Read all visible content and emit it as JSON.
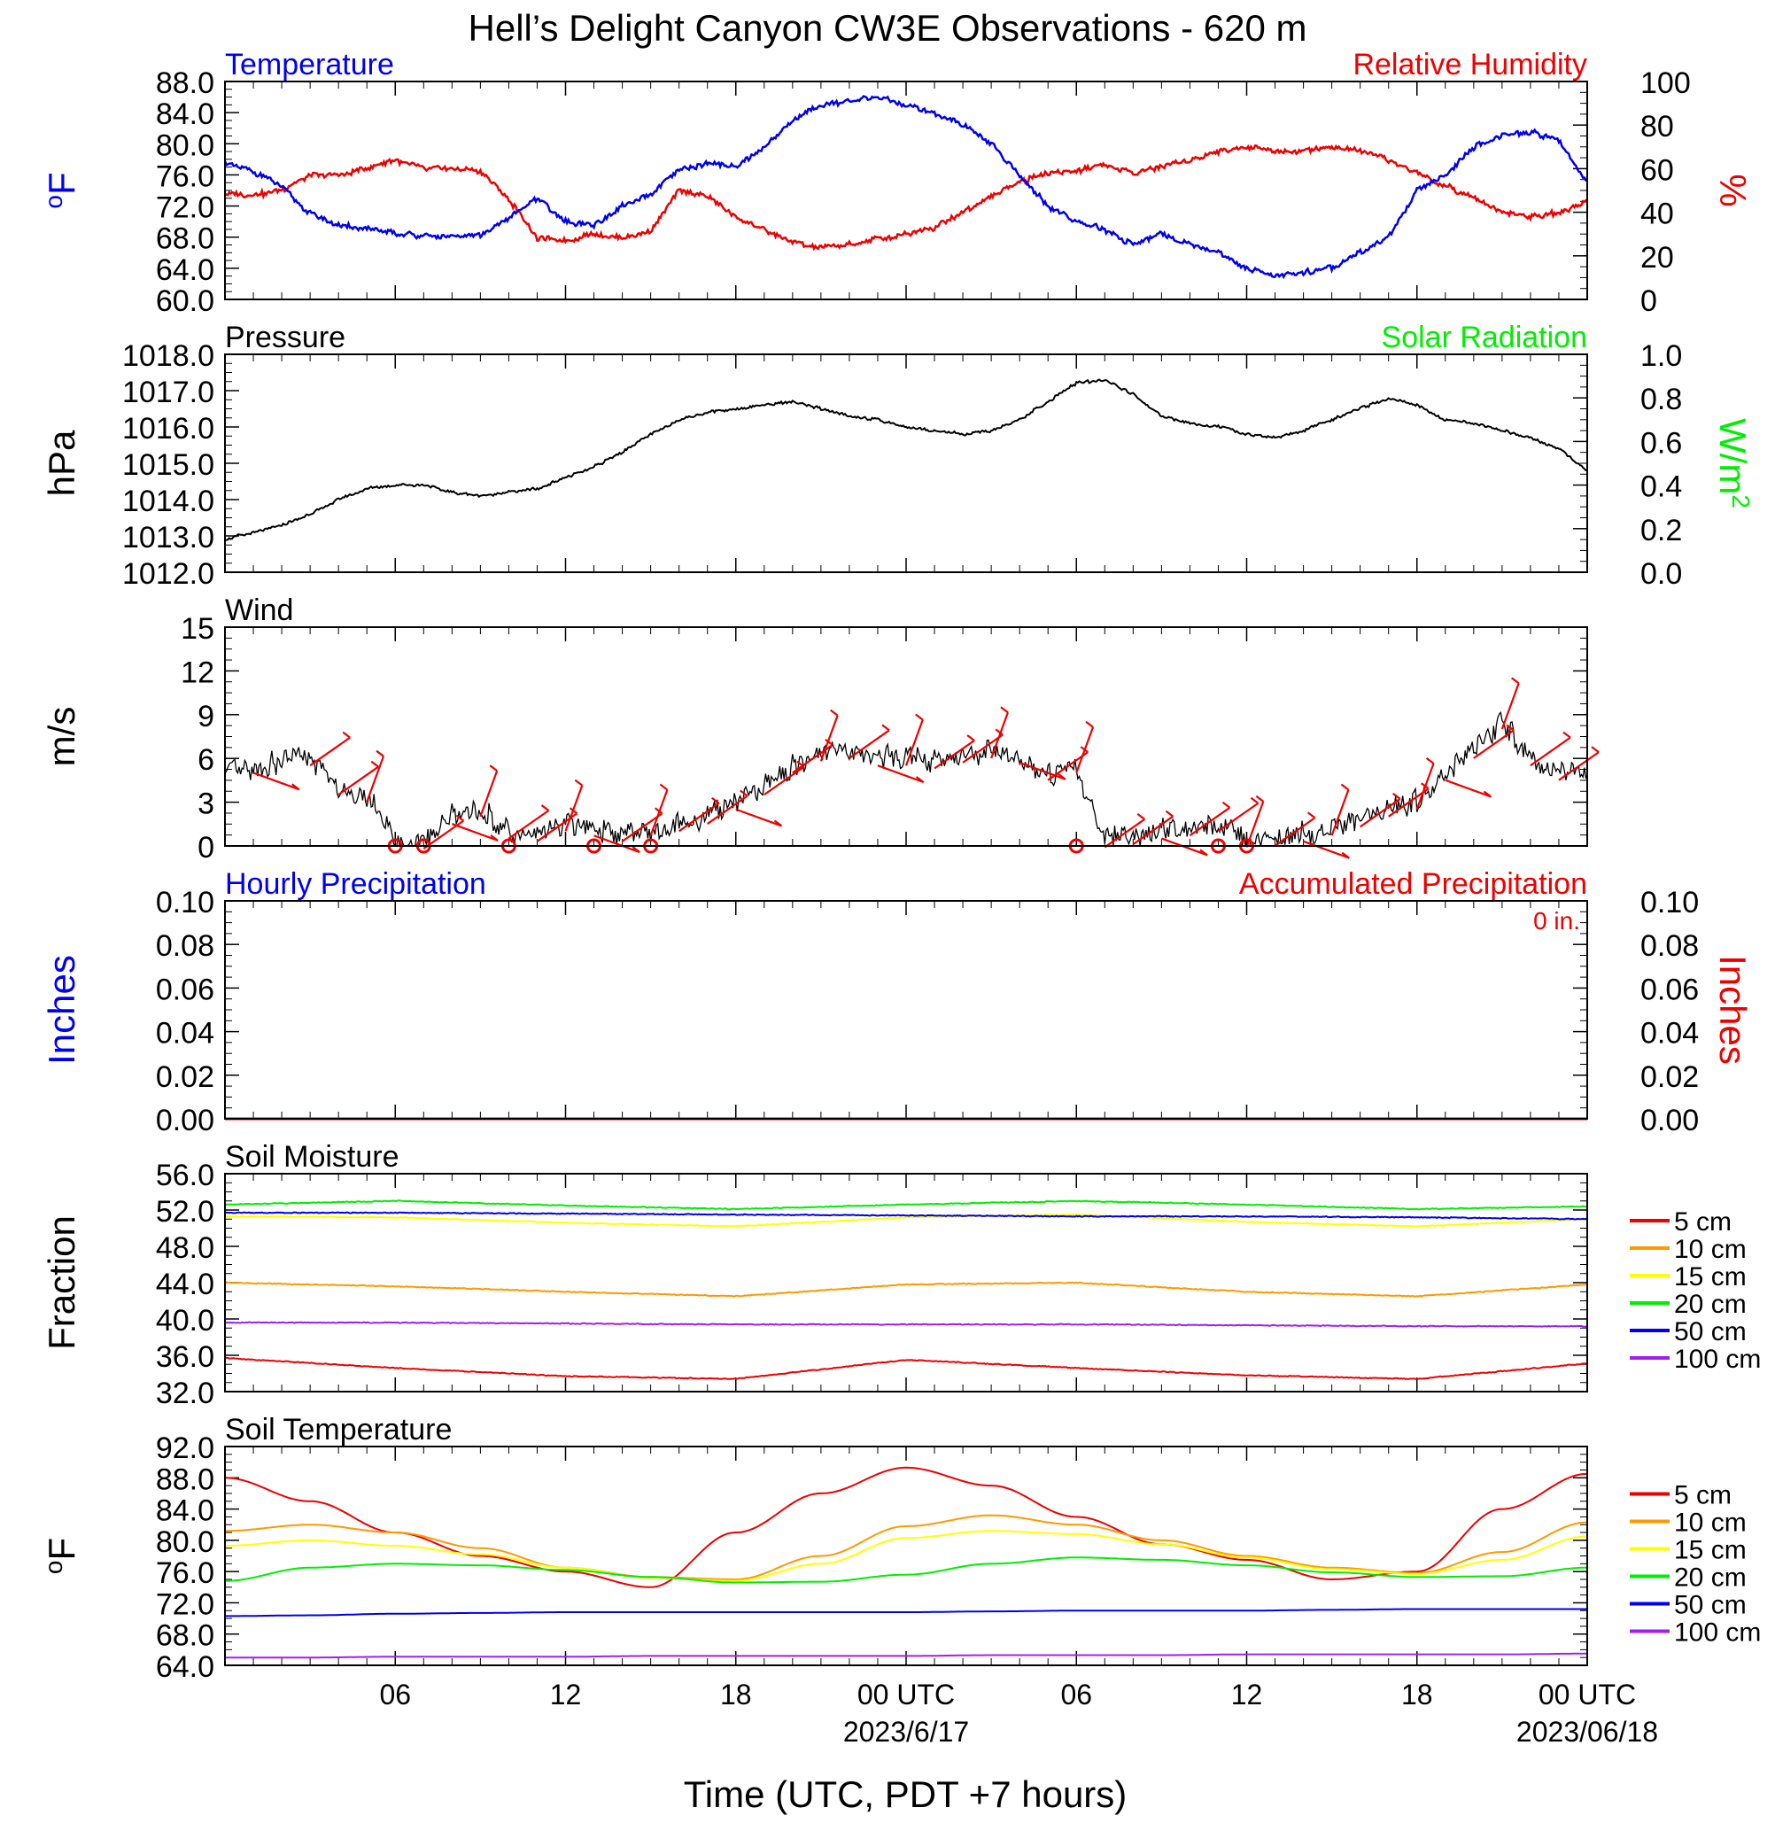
{
  "title": "Hell’s Delight Canyon CW3E Observations - 620 m",
  "x_axis": {
    "label": "Time (UTC, PDT +7 hours)",
    "ticks": [
      {
        "hour": 6,
        "label": "06",
        "date": ""
      },
      {
        "hour": 12,
        "label": "12",
        "date": ""
      },
      {
        "hour": 18,
        "label": "18",
        "date": ""
      },
      {
        "hour": 24,
        "label": "00 UTC",
        "date": "2023/6/17"
      },
      {
        "hour": 30,
        "label": "06",
        "date": ""
      },
      {
        "hour": 36,
        "label": "12",
        "date": ""
      },
      {
        "hour": 42,
        "label": "18",
        "date": ""
      },
      {
        "hour": 48,
        "label": "00 UTC",
        "date": "2023/06/18"
      }
    ]
  },
  "colors": {
    "blue": "#0000ee",
    "red": "#ee0000",
    "green": "#00ee00",
    "orange": "#ff9900",
    "yellow": "#ffff00",
    "purple": "#a020f0",
    "black": "#000000"
  },
  "chart_data": [
    {
      "type": "line",
      "panel": "Temperature / Relative Humidity",
      "left_title": "Temperature",
      "right_title": "Relative Humidity",
      "ylabel_left": "oF",
      "ylabel_right": "%",
      "ylim_left": [
        60,
        88
      ],
      "ylim_right": [
        0,
        100
      ],
      "yticks_left": [
        "60.0",
        "64.0",
        "68.0",
        "72.0",
        "76.0",
        "80.0",
        "84.0",
        "88.0"
      ],
      "yticks_right": [
        "0",
        "20",
        "40",
        "60",
        "80",
        "100"
      ],
      "x_hours": [
        0,
        1,
        2,
        3,
        4,
        5,
        6,
        7,
        8,
        9,
        10,
        11,
        12,
        13,
        14,
        15,
        16,
        17,
        18,
        19,
        20,
        21,
        22,
        23,
        24,
        25,
        26,
        27,
        28,
        29,
        30,
        31,
        32,
        33,
        34,
        35,
        36,
        37,
        38,
        39,
        40,
        41,
        42,
        43,
        44,
        45,
        46,
        47,
        48
      ],
      "series": [
        {
          "name": "Temperature",
          "axis": "left",
          "color": "blue",
          "values": [
            77.5,
            76.5,
            74.5,
            71,
            69.5,
            69,
            68.5,
            68.2,
            68,
            68.3,
            70.5,
            73,
            70,
            69.5,
            72,
            73.5,
            76.5,
            77.5,
            77,
            79.5,
            83,
            85,
            85.5,
            86,
            85,
            84,
            82.5,
            80,
            76,
            72,
            70,
            69,
            67,
            68.5,
            67,
            66,
            64,
            63,
            63.5,
            64,
            66,
            68,
            74,
            76,
            79.5,
            81,
            81.5,
            80.5,
            75
          ]
        },
        {
          "name": "Relative Humidity",
          "axis": "right",
          "color": "red",
          "values": [
            48,
            48,
            50,
            57,
            57,
            60,
            64,
            60,
            60,
            59,
            46,
            28,
            27,
            30,
            28,
            32,
            50,
            47,
            38,
            32,
            26,
            24,
            25,
            28,
            30,
            33,
            40,
            47,
            54,
            58,
            59,
            62,
            58,
            61,
            64,
            68,
            70,
            68,
            68,
            70,
            68,
            64,
            58,
            52,
            47,
            40,
            38,
            40,
            45
          ]
        }
      ]
    },
    {
      "type": "line",
      "panel": "Pressure / Solar Radiation",
      "left_title": "Pressure",
      "right_title": "Solar Radiation",
      "ylabel_left": "hPa",
      "ylabel_right": "W/m2",
      "ylim_left": [
        1012,
        1018
      ],
      "ylim_right": [
        0,
        1
      ],
      "yticks_left": [
        "1012.0",
        "1013.0",
        "1014.0",
        "1015.0",
        "1016.0",
        "1017.0",
        "1018.0"
      ],
      "yticks_right": [
        "0.0",
        "0.2",
        "0.4",
        "0.6",
        "0.8",
        "1.0"
      ],
      "x_hours": [
        0,
        1,
        2,
        3,
        4,
        5,
        6,
        7,
        8,
        9,
        10,
        11,
        12,
        13,
        14,
        15,
        16,
        17,
        18,
        19,
        20,
        21,
        22,
        23,
        24,
        25,
        26,
        27,
        28,
        29,
        30,
        31,
        32,
        33,
        34,
        35,
        36,
        37,
        38,
        39,
        40,
        41,
        42,
        43,
        44,
        45,
        46,
        47,
        48
      ],
      "series": [
        {
          "name": "Pressure",
          "axis": "left",
          "color": "black",
          "values": [
            1012.9,
            1013.1,
            1013.3,
            1013.6,
            1014.0,
            1014.3,
            1014.4,
            1014.4,
            1014.2,
            1014.1,
            1014.2,
            1014.3,
            1014.6,
            1014.9,
            1015.3,
            1015.8,
            1016.2,
            1016.4,
            1016.5,
            1016.6,
            1016.7,
            1016.5,
            1016.3,
            1016.2,
            1016.0,
            1015.9,
            1015.8,
            1015.9,
            1016.2,
            1016.7,
            1017.2,
            1017.3,
            1016.9,
            1016.3,
            1016.1,
            1016.0,
            1015.8,
            1015.7,
            1015.9,
            1016.2,
            1016.5,
            1016.8,
            1016.6,
            1016.2,
            1016.1,
            1015.9,
            1015.7,
            1015.4,
            1014.8
          ]
        }
      ]
    },
    {
      "type": "line",
      "panel": "Wind",
      "left_title": "Wind",
      "ylabel_left": "m/s",
      "ylim_left": [
        0,
        15
      ],
      "yticks_left": [
        "0",
        "3",
        "6",
        "9",
        "12",
        "15"
      ],
      "x_hours": [
        0,
        1,
        2,
        3,
        4,
        5,
        6,
        7,
        8,
        9,
        10,
        11,
        12,
        13,
        14,
        15,
        16,
        17,
        18,
        19,
        20,
        21,
        22,
        23,
        24,
        25,
        26,
        27,
        28,
        29,
        30,
        31,
        32,
        33,
        34,
        35,
        36,
        37,
        38,
        39,
        40,
        41,
        42,
        43,
        44,
        45,
        46,
        47,
        48
      ],
      "series": [
        {
          "name": "Wind speed",
          "color": "black",
          "values": [
            5,
            5.5,
            5.8,
            6,
            4,
            3.5,
            0.2,
            0.3,
            2,
            2.5,
            1,
            0.8,
            1.5,
            1.2,
            0.8,
            1.2,
            1.5,
            2,
            3,
            4,
            5.5,
            6.3,
            6.5,
            6,
            6,
            5.8,
            6.2,
            6.5,
            6.2,
            5,
            5.5,
            0.4,
            0.6,
            1,
            1.2,
            1.5,
            0.4,
            0.5,
            0.8,
            1.2,
            1.8,
            2.5,
            3,
            5,
            6.5,
            8.5,
            6,
            5,
            5
          ]
        }
      ],
      "barb_hours": [
        1,
        3,
        4,
        5,
        7,
        8,
        9,
        10,
        11,
        12,
        13,
        14,
        15,
        16,
        17,
        18,
        19,
        20,
        21,
        22,
        23,
        24,
        25,
        26,
        27,
        28,
        29,
        30,
        31,
        32,
        33,
        34,
        35,
        36,
        37,
        38,
        39,
        40,
        41,
        42,
        43,
        44,
        45,
        46,
        47
      ],
      "calm_hours": [
        6,
        7,
        10,
        13,
        15,
        30,
        35,
        36
      ]
    },
    {
      "type": "bar",
      "panel": "Precipitation",
      "left_title": "Hourly Precipitation",
      "right_title": "Accumulated Precipitation",
      "accumulated_total": "0 in.",
      "ylabel_left": "Inches",
      "ylabel_right": "Inches",
      "ylim_left": [
        0,
        0.1
      ],
      "ylim_right": [
        0,
        0.1
      ],
      "yticks_left": [
        "0.00",
        "0.02",
        "0.04",
        "0.06",
        "0.08",
        "0.10"
      ],
      "yticks_right": [
        "0.00",
        "0.02",
        "0.04",
        "0.06",
        "0.08",
        "0.10"
      ],
      "series": [
        {
          "name": "Hourly Precipitation",
          "color": "blue",
          "values": [
            0
          ]
        },
        {
          "name": "Accumulated Precipitation",
          "color": "red",
          "values": [
            0
          ]
        }
      ]
    },
    {
      "type": "line",
      "panel": "Soil Moisture",
      "left_title": "Soil Moisture",
      "ylabel_left": "Fraction",
      "ylim_left": [
        32,
        56
      ],
      "yticks_left": [
        "32.0",
        "36.0",
        "40.0",
        "44.0",
        "48.0",
        "52.0",
        "56.0"
      ],
      "x_hours": [
        0,
        6,
        12,
        18,
        24,
        30,
        36,
        42,
        48
      ],
      "series": [
        {
          "name": "5 cm",
          "color": "red",
          "values": [
            35.7,
            34.6,
            33.7,
            33.4,
            35.5,
            34.6,
            33.8,
            33.4,
            35.1
          ]
        },
        {
          "name": "10 cm",
          "color": "orange",
          "values": [
            44.0,
            43.6,
            43.0,
            42.5,
            43.8,
            44.0,
            43.0,
            42.5,
            43.8
          ]
        },
        {
          "name": "15 cm",
          "color": "yellow",
          "values": [
            51.3,
            51.2,
            50.6,
            50.2,
            51.2,
            51.5,
            50.7,
            50.2,
            51.0
          ]
        },
        {
          "name": "20 cm",
          "color": "green",
          "values": [
            52.6,
            53.0,
            52.5,
            52.1,
            52.6,
            53.0,
            52.6,
            52.1,
            52.4
          ]
        },
        {
          "name": "50 cm",
          "color": "blue",
          "values": [
            51.7,
            51.7,
            51.6,
            51.5,
            51.4,
            51.3,
            51.3,
            51.2,
            51.0
          ]
        },
        {
          "name": "100 cm",
          "color": "purple",
          "values": [
            39.6,
            39.6,
            39.5,
            39.4,
            39.4,
            39.4,
            39.3,
            39.2,
            39.2
          ]
        }
      ],
      "legend": [
        "5 cm",
        "10 cm",
        "15 cm",
        "20 cm",
        "50 cm",
        "100 cm"
      ]
    },
    {
      "type": "line",
      "panel": "Soil Temperature",
      "left_title": "Soil Temperature",
      "ylabel_left": "oF",
      "ylim_left": [
        64,
        92
      ],
      "yticks_left": [
        "64.0",
        "68.0",
        "72.0",
        "76.0",
        "80.0",
        "84.0",
        "88.0",
        "92.0"
      ],
      "x_hours": [
        0,
        3,
        6,
        9,
        12,
        15,
        18,
        21,
        24,
        27,
        30,
        33,
        36,
        39,
        42,
        45,
        48
      ],
      "series": [
        {
          "name": "5 cm",
          "color": "red",
          "values": [
            88,
            85,
            81,
            78,
            76,
            74,
            81,
            86,
            89.3,
            87,
            83,
            79.5,
            77.5,
            75,
            76,
            84,
            88.5
          ]
        },
        {
          "name": "10 cm",
          "color": "orange",
          "values": [
            81.2,
            82,
            81,
            79,
            76.5,
            75.3,
            75,
            78,
            81.8,
            83.2,
            82,
            80,
            78,
            76.5,
            75.8,
            78.5,
            82.3
          ]
        },
        {
          "name": "15 cm",
          "color": "yellow",
          "values": [
            79.3,
            80,
            79.3,
            78.2,
            76.5,
            75.2,
            74.8,
            77,
            80.3,
            81.2,
            80.8,
            79.5,
            77.8,
            76.3,
            75.7,
            77.5,
            80.5
          ]
        },
        {
          "name": "20 cm",
          "color": "green",
          "values": [
            74.8,
            76.5,
            77,
            76.8,
            76.2,
            75.3,
            74.6,
            74.7,
            75.6,
            77,
            77.8,
            77.5,
            76.8,
            75.9,
            75.3,
            75.4,
            76.5
          ]
        },
        {
          "name": "50 cm",
          "color": "blue",
          "values": [
            70.3,
            70.4,
            70.6,
            70.7,
            70.8,
            70.8,
            70.8,
            70.8,
            70.8,
            70.9,
            71,
            71,
            71,
            71.1,
            71.2,
            71.2,
            71.2
          ]
        },
        {
          "name": "100 cm",
          "color": "purple",
          "values": [
            65,
            65,
            65.1,
            65.1,
            65.1,
            65.2,
            65.2,
            65.2,
            65.2,
            65.3,
            65.3,
            65.3,
            65.4,
            65.4,
            65.4,
            65.4,
            65.5
          ]
        }
      ],
      "legend": [
        "5 cm",
        "10 cm",
        "15 cm",
        "20 cm",
        "50 cm",
        "100 cm"
      ]
    }
  ]
}
